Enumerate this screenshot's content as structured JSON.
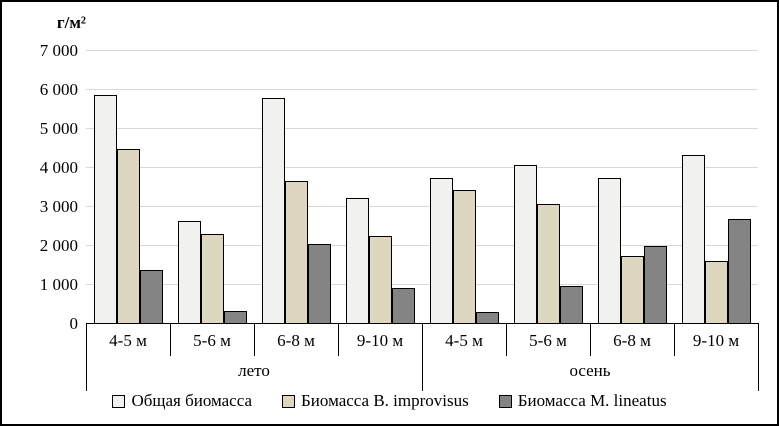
{
  "chart_data": {
    "type": "bar",
    "ylabel": "г/м²",
    "xlabel": "",
    "title": "",
    "ylim": [
      0,
      7000
    ],
    "y_tick_step": 1000,
    "y_ticks": [
      "0",
      "1 000",
      "2 000",
      "3 000",
      "4 000",
      "5 000",
      "6 000",
      "7 000"
    ],
    "grid": true,
    "legend_position": "bottom",
    "group_labels": [
      "лето",
      "осень"
    ],
    "categories_per_group": 4,
    "categories": [
      "4-5 м",
      "5-6 м",
      "6-8 м",
      "9-10 м",
      "4-5 м",
      "5-6 м",
      "6-8 м",
      "9-10 м"
    ],
    "series": [
      {
        "name": "Общая биомасса",
        "color": "#f1f1ef",
        "values": [
          5850,
          2620,
          5760,
          3210,
          3720,
          4060,
          3730,
          4300
        ]
      },
      {
        "name": "Биомасса B. improvisus",
        "color": "#dcd7be",
        "values": [
          4450,
          2290,
          3640,
          2220,
          3410,
          3060,
          1720,
          1600
        ]
      },
      {
        "name": "Биомасса M. lineatus",
        "color": "#848484",
        "values": [
          1350,
          310,
          2030,
          890,
          280,
          950,
          1980,
          2670
        ]
      }
    ],
    "colors": {
      "gridline": "#d9d9d9",
      "axis": "#000000",
      "bar_border": "#000000"
    }
  }
}
